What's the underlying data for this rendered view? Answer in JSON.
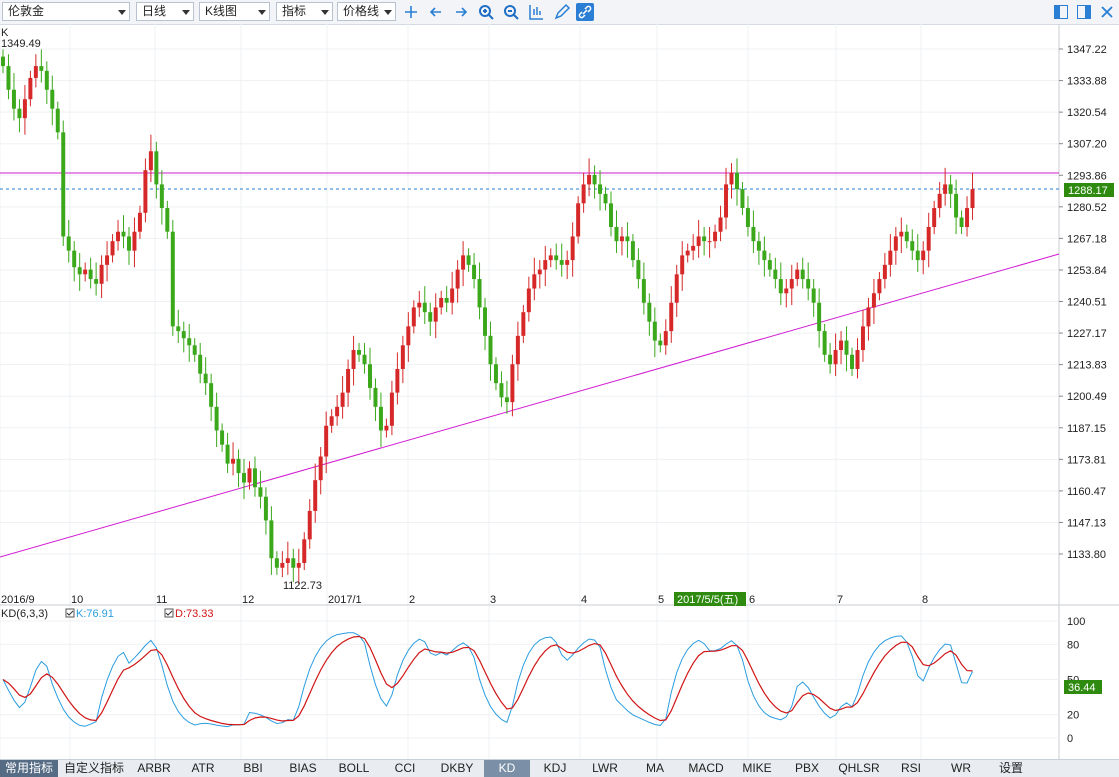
{
  "toolbar": {
    "symbol": "伦敦金",
    "period": "日线",
    "chart_type": "K线图",
    "indicator": "指标",
    "line_type": "价格线",
    "icons": [
      "crosshair-icon",
      "arrow-left-icon",
      "arrow-right-icon",
      "zoom-in-icon",
      "zoom-out-icon",
      "bar-scale-icon",
      "pencil-icon",
      "link-icon"
    ],
    "right_icons": [
      "layout-icon",
      "window-icon",
      "close-icon"
    ]
  },
  "price_panel": {
    "label": "K",
    "high_label": "1349.49",
    "low_label": "1122.73",
    "current_price": "1288.17",
    "y_ticks": [
      "1347.22",
      "1333.88",
      "1320.54",
      "1307.20",
      "1293.86",
      "1280.52",
      "1267.18",
      "1253.84",
      "1240.51",
      "1227.17",
      "1213.83",
      "1200.49",
      "1187.15",
      "1173.81",
      "1160.47",
      "1147.13",
      "1133.80"
    ]
  },
  "x_axis": {
    "labels": [
      "2016/9",
      "10",
      "11",
      "12",
      "2017/1",
      "2",
      "3",
      "4",
      "5",
      "6",
      "7",
      "8"
    ],
    "highlight_date": "2017/5/5(五)"
  },
  "kd_panel": {
    "title": "KD(6,3,3)",
    "k_label": "K:76.91",
    "d_label": "D:73.33",
    "current": "36.44",
    "y_ticks": [
      "100",
      "80",
      "50",
      "20",
      "0"
    ]
  },
  "tabs": [
    "常用指标",
    "自定义指标",
    "ARBR",
    "ATR",
    "BBI",
    "BIAS",
    "BOLL",
    "CCI",
    "DKBY",
    "KD",
    "KDJ",
    "LWR",
    "MA",
    "MACD",
    "MIKE",
    "PBX",
    "QHLSR",
    "RSI",
    "WR",
    "设置"
  ],
  "active_tab": "KD",
  "colors": {
    "up": "#d62828",
    "down": "#3aa81a",
    "k_line": "#2a9de0",
    "d_line": "#d11515",
    "trend": "#d21bd2",
    "price_box": "#2e8b10"
  },
  "chart_data": {
    "type": "candlestick",
    "title": "伦敦金",
    "ylim": [
      1122.73,
      1349.49
    ],
    "close_series": [
      1340,
      1330,
      1322,
      1318,
      1326,
      1335,
      1340,
      1338,
      1330,
      1322,
      1312,
      1268,
      1262,
      1255,
      1252,
      1254,
      1250,
      1248,
      1256,
      1260,
      1266,
      1270,
      1268,
      1262,
      1270,
      1278,
      1296,
      1304,
      1290,
      1280,
      1270,
      1230,
      1228,
      1225,
      1222,
      1218,
      1210,
      1206,
      1196,
      1186,
      1180,
      1172,
      1174,
      1168,
      1164,
      1170,
      1162,
      1158,
      1148,
      1132,
      1128,
      1130,
      1132,
      1128,
      1130,
      1140,
      1152,
      1165,
      1175,
      1188,
      1192,
      1196,
      1202,
      1212,
      1220,
      1218,
      1214,
      1204,
      1196,
      1186,
      1188,
      1202,
      1212,
      1222,
      1230,
      1238,
      1240,
      1236,
      1232,
      1238,
      1242,
      1240,
      1246,
      1254,
      1260,
      1256,
      1250,
      1238,
      1226,
      1214,
      1206,
      1200,
      1198,
      1214,
      1226,
      1236,
      1246,
      1252,
      1254,
      1258,
      1260,
      1258,
      1256,
      1258,
      1268,
      1282,
      1290,
      1294,
      1290,
      1286,
      1282,
      1272,
      1266,
      1268,
      1266,
      1258,
      1250,
      1240,
      1232,
      1224,
      1222,
      1228,
      1240,
      1252,
      1260,
      1262,
      1264,
      1268,
      1266,
      1266,
      1270,
      1276,
      1290,
      1295,
      1288,
      1280,
      1272,
      1266,
      1262,
      1258,
      1254,
      1250,
      1244,
      1246,
      1250,
      1254,
      1250,
      1246,
      1240,
      1228,
      1218,
      1214,
      1220,
      1224,
      1218,
      1212,
      1220,
      1230,
      1238,
      1244,
      1250,
      1256,
      1262,
      1268,
      1270,
      1266,
      1262,
      1258,
      1262,
      1272,
      1280,
      1286,
      1290,
      1286,
      1276,
      1272,
      1280,
      1288
    ]
  }
}
